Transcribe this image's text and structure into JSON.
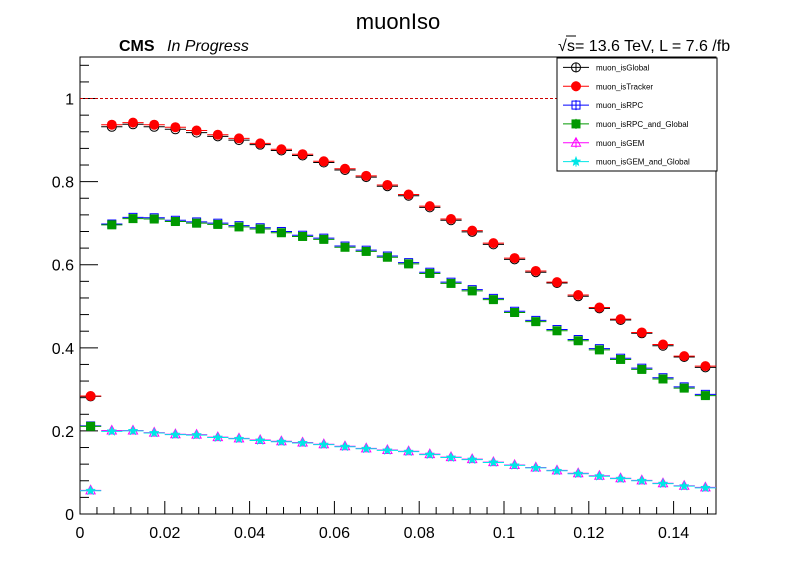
{
  "chart_data": {
    "type": "scatter",
    "title": "muonIso",
    "cms_label": "CMS",
    "status_label": "In Progress",
    "lumi_prefix": "s",
    "lumi_text": " = 13.6 TeV, L = 7.6 /fb",
    "xlabel": "",
    "ylabel": "",
    "xlim": [
      0,
      0.15
    ],
    "ylim": [
      0,
      1.1
    ],
    "x_ticks": [
      0,
      0.02,
      0.04,
      0.06,
      0.08,
      0.1,
      0.12,
      0.14
    ],
    "x_tick_labels": [
      "0",
      "0.02",
      "0.04",
      "0.06",
      "0.08",
      "0.1",
      "0.12",
      "0.14"
    ],
    "y_ticks": [
      0,
      0.2,
      0.4,
      0.6,
      0.8,
      1
    ],
    "y_tick_labels": [
      "0",
      "0.2",
      "0.4",
      "0.6",
      "0.8",
      "1"
    ],
    "reference_line": 1,
    "reference_color": "#cc0000",
    "legend_position": "top-right",
    "x": [
      0.0025,
      0.0075,
      0.0125,
      0.0175,
      0.0225,
      0.0275,
      0.0325,
      0.0375,
      0.0425,
      0.0475,
      0.0525,
      0.0575,
      0.0625,
      0.0675,
      0.0725,
      0.0775,
      0.0825,
      0.0875,
      0.0925,
      0.0975,
      0.1025,
      0.1075,
      0.1125,
      0.1175,
      0.1225,
      0.1275,
      0.1325,
      0.1375,
      0.1425,
      0.1475
    ],
    "series": [
      {
        "name": "muon_isGlobal",
        "marker": "open-circle",
        "color": "#000000",
        "values": [
          0.283,
          0.932,
          0.938,
          0.932,
          0.926,
          0.918,
          0.909,
          0.9,
          0.889,
          0.875,
          0.863,
          0.846,
          0.828,
          0.811,
          0.789,
          0.766,
          0.738,
          0.707,
          0.679,
          0.649,
          0.613,
          0.582,
          0.556,
          0.524,
          0.495,
          0.467,
          0.435,
          0.405,
          0.378,
          0.353
        ]
      },
      {
        "name": "muon_isTracker",
        "marker": "filled-circle",
        "color": "#ff0000",
        "values": [
          0.284,
          0.937,
          0.942,
          0.937,
          0.931,
          0.923,
          0.913,
          0.904,
          0.892,
          0.878,
          0.866,
          0.849,
          0.831,
          0.814,
          0.792,
          0.769,
          0.741,
          0.71,
          0.682,
          0.652,
          0.616,
          0.585,
          0.558,
          0.527,
          0.497,
          0.469,
          0.437,
          0.408,
          0.38,
          0.356
        ]
      },
      {
        "name": "muon_isRPC",
        "marker": "open-square",
        "color": "#0000ff",
        "values": [
          0.212,
          0.698,
          0.714,
          0.713,
          0.707,
          0.703,
          0.7,
          0.694,
          0.689,
          0.68,
          0.671,
          0.664,
          0.645,
          0.635,
          0.621,
          0.605,
          0.582,
          0.558,
          0.54,
          0.519,
          0.488,
          0.466,
          0.444,
          0.42,
          0.398,
          0.375,
          0.351,
          0.328,
          0.306,
          0.288
        ]
      },
      {
        "name": "muon_isRPC_and_Global",
        "marker": "filled-square",
        "color": "#009900",
        "values": [
          0.211,
          0.696,
          0.711,
          0.71,
          0.704,
          0.7,
          0.697,
          0.691,
          0.686,
          0.677,
          0.668,
          0.661,
          0.642,
          0.632,
          0.618,
          0.602,
          0.579,
          0.555,
          0.537,
          0.516,
          0.485,
          0.463,
          0.441,
          0.417,
          0.395,
          0.372,
          0.348,
          0.325,
          0.303,
          0.285
        ]
      },
      {
        "name": "muon_isGEM",
        "marker": "open-triangle",
        "color": "#ff00ff",
        "values": [
          0.057,
          0.201,
          0.201,
          0.196,
          0.192,
          0.191,
          0.185,
          0.182,
          0.178,
          0.175,
          0.172,
          0.168,
          0.163,
          0.158,
          0.154,
          0.151,
          0.144,
          0.137,
          0.132,
          0.125,
          0.118,
          0.112,
          0.105,
          0.098,
          0.092,
          0.086,
          0.081,
          0.074,
          0.068,
          0.064
        ]
      },
      {
        "name": "muon_isGEM_and_Global",
        "marker": "filled-star",
        "color": "#00e6e6",
        "values": [
          0.056,
          0.199,
          0.2,
          0.195,
          0.191,
          0.19,
          0.184,
          0.181,
          0.177,
          0.174,
          0.171,
          0.167,
          0.162,
          0.157,
          0.153,
          0.15,
          0.143,
          0.136,
          0.131,
          0.124,
          0.117,
          0.111,
          0.104,
          0.097,
          0.091,
          0.085,
          0.08,
          0.073,
          0.067,
          0.063
        ]
      }
    ]
  }
}
